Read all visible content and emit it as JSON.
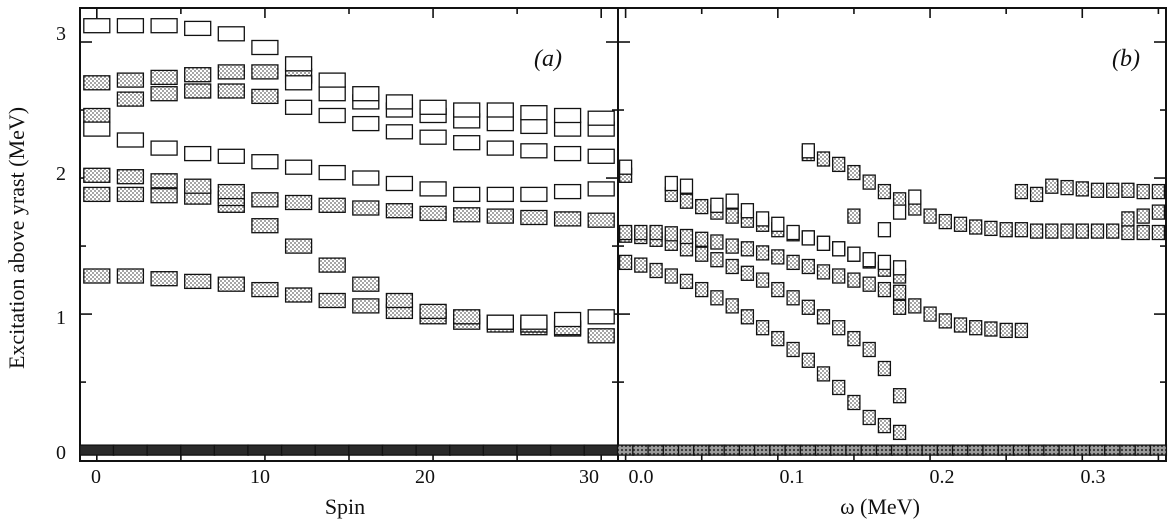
{
  "figure": {
    "ylabel": "Excitation above yrast (MeV)",
    "yticks": [
      "0",
      "1",
      "2",
      "3"
    ],
    "colors": {
      "shaded": "#b9b9b9",
      "open": "#ffffff",
      "ground_a": "#2a2a2a",
      "ground_b": "#9a9a9a",
      "ink": "#111111"
    }
  },
  "chart_data": [
    {
      "type": "scatter",
      "panel_label": "(a)",
      "xlabel": "Spin",
      "ylabel": "Excitation above yrast (MeV)",
      "xlim": [
        -1,
        31
      ],
      "ylim": [
        -0.08,
        3.25
      ],
      "xticks": [
        "0",
        "10",
        "20",
        "30"
      ],
      "series": [
        {
          "style": "shaded",
          "x": [
            0,
            2,
            4,
            6,
            8,
            10,
            12,
            14,
            16,
            18,
            20,
            22,
            24,
            26,
            28,
            30
          ],
          "y": [
            0.0,
            0.0,
            0.0,
            0.0,
            0.0,
            0.0,
            0.0,
            0.0,
            0.0,
            0.0,
            0.0,
            0.0,
            0.0,
            0.0,
            0.0,
            0.0
          ]
        },
        {
          "style": "shaded",
          "x": [
            0,
            2,
            4,
            6,
            8,
            10,
            12,
            14,
            16,
            18,
            20,
            22,
            24,
            26,
            28,
            30
          ],
          "y": [
            1.28,
            1.28,
            1.26,
            1.24,
            1.22,
            1.18,
            1.14,
            1.1,
            1.06,
            1.02,
            0.98,
            0.94,
            0.92,
            0.9,
            0.89,
            0.84
          ]
        },
        {
          "style": "shaded",
          "x": [
            8,
            10,
            12,
            14,
            16,
            18,
            20,
            22,
            24,
            26,
            28
          ],
          "y": [
            1.8,
            1.65,
            1.5,
            1.36,
            1.22,
            1.1,
            1.02,
            0.98,
            0.94,
            0.92,
            0.9
          ]
        },
        {
          "style": "shaded",
          "x": [
            0,
            2,
            4,
            6,
            8,
            10,
            12,
            14,
            16,
            18,
            20,
            22,
            24,
            26,
            28,
            30
          ],
          "y": [
            1.88,
            1.88,
            1.87,
            1.86,
            1.85,
            1.84,
            1.82,
            1.8,
            1.78,
            1.76,
            1.74,
            1.73,
            1.72,
            1.71,
            1.7,
            1.69
          ]
        },
        {
          "style": "shaded",
          "x": [
            0,
            2,
            4,
            6,
            8
          ],
          "y": [
            2.02,
            2.01,
            1.98,
            1.94,
            1.9
          ]
        },
        {
          "style": "shaded",
          "x": [
            0,
            2,
            4,
            6,
            8,
            10
          ],
          "y": [
            2.46,
            2.58,
            2.62,
            2.64,
            2.64,
            2.6
          ]
        },
        {
          "style": "shaded",
          "x": [
            0,
            2,
            4,
            6,
            8,
            10,
            12
          ],
          "y": [
            2.7,
            2.72,
            2.74,
            2.76,
            2.78,
            2.78,
            2.75
          ]
        },
        {
          "style": "open",
          "x": [
            0,
            2,
            4,
            6,
            8,
            10,
            12,
            14,
            16,
            18,
            20,
            22,
            24,
            26,
            28,
            30
          ],
          "y": [
            2.36,
            2.28,
            2.22,
            2.18,
            2.16,
            2.12,
            2.08,
            2.04,
            2.0,
            1.96,
            1.92,
            1.88,
            1.88,
            1.88,
            1.9,
            1.92
          ]
        },
        {
          "style": "open",
          "x": [
            12,
            14,
            16,
            18,
            20,
            22,
            24,
            26,
            28,
            30
          ],
          "y": [
            2.52,
            2.46,
            2.4,
            2.34,
            2.3,
            2.26,
            2.22,
            2.2,
            2.18,
            2.16
          ]
        },
        {
          "style": "open",
          "x": [
            12,
            14,
            16,
            18,
            20,
            22,
            24,
            26,
            28,
            30
          ],
          "y": [
            2.7,
            2.62,
            2.56,
            2.5,
            2.46,
            2.42,
            2.4,
            2.38,
            2.36,
            2.36
          ]
        },
        {
          "style": "open",
          "x": [
            0,
            2,
            4,
            6,
            8,
            10,
            12,
            14,
            16,
            18,
            20,
            22,
            24,
            26,
            28,
            30
          ],
          "y": [
            3.12,
            3.12,
            3.12,
            3.1,
            3.06,
            2.96,
            2.84,
            2.72,
            2.62,
            2.56,
            2.52,
            2.5,
            2.5,
            2.48,
            2.46,
            2.44
          ]
        },
        {
          "style": "open",
          "x": [
            24,
            26,
            28,
            30
          ],
          "y": [
            0.94,
            0.94,
            0.96,
            0.98
          ]
        }
      ]
    },
    {
      "type": "scatter",
      "panel_label": "(b)",
      "xlabel": "ω (MeV)",
      "xlim": [
        -0.005,
        0.355
      ],
      "ylim": [
        -0.08,
        3.25
      ],
      "xticks": [
        "0.0",
        "0.1",
        "0.2",
        "0.3"
      ],
      "series": [
        {
          "style": "ground",
          "x": [
            0.0,
            0.01,
            0.02,
            0.03,
            0.04,
            0.05,
            0.06,
            0.07,
            0.08,
            0.09,
            0.1,
            0.11,
            0.12,
            0.13,
            0.14,
            0.15,
            0.16,
            0.17,
            0.18,
            0.19,
            0.2,
            0.21,
            0.22,
            0.23,
            0.24,
            0.25,
            0.26,
            0.27,
            0.28,
            0.29,
            0.3,
            0.31,
            0.32,
            0.33,
            0.34,
            0.35
          ],
          "y": [
            0.0,
            0.0,
            0.0,
            0.0,
            0.0,
            0.0,
            0.0,
            0.0,
            0.0,
            0.0,
            0.0,
            0.0,
            0.0,
            0.0,
            0.0,
            0.0,
            0.0,
            0.0,
            0.0,
            0.0,
            0.0,
            0.0,
            0.0,
            0.0,
            0.0,
            0.0,
            0.0,
            0.0,
            0.0,
            0.0,
            0.0,
            0.0,
            0.0,
            0.0,
            0.0,
            0.0
          ]
        },
        {
          "style": "shaded",
          "x": [
            0.0,
            0.01,
            0.02,
            0.03,
            0.04,
            0.05,
            0.06,
            0.07,
            0.08,
            0.09,
            0.1,
            0.11,
            0.12,
            0.13,
            0.14,
            0.15,
            0.16,
            0.17,
            0.18
          ],
          "y": [
            1.38,
            1.36,
            1.32,
            1.28,
            1.24,
            1.18,
            1.12,
            1.06,
            0.98,
            0.9,
            0.82,
            0.74,
            0.66,
            0.56,
            0.46,
            0.35,
            0.24,
            0.18,
            0.13
          ]
        },
        {
          "style": "shaded",
          "x": [
            0.0,
            0.01,
            0.02,
            0.03,
            0.04,
            0.05,
            0.06,
            0.07,
            0.08,
            0.09,
            0.1,
            0.11,
            0.12,
            0.13,
            0.14,
            0.15,
            0.16,
            0.17,
            0.18
          ],
          "y": [
            1.58,
            1.57,
            1.55,
            1.52,
            1.48,
            1.44,
            1.4,
            1.35,
            1.3,
            1.25,
            1.18,
            1.12,
            1.05,
            0.98,
            0.9,
            0.82,
            0.74,
            0.6,
            0.4
          ]
        },
        {
          "style": "shaded",
          "x": [
            0.0,
            0.01,
            0.02,
            0.03,
            0.04,
            0.05,
            0.06,
            0.07,
            0.08,
            0.09,
            0.1,
            0.11,
            0.12,
            0.13,
            0.14,
            0.15,
            0.16,
            0.17,
            0.18
          ],
          "y": [
            1.6,
            1.6,
            1.6,
            1.59,
            1.57,
            1.55,
            1.53,
            1.5,
            1.48,
            1.45,
            1.42,
            1.38,
            1.35,
            1.31,
            1.28,
            1.25,
            1.22,
            1.18,
            1.16
          ]
        },
        {
          "style": "shaded",
          "x": [
            0.03,
            0.04,
            0.05,
            0.06,
            0.07,
            0.08,
            0.09,
            0.1,
            0.11,
            0.12,
            0.13,
            0.14,
            0.15,
            0.16,
            0.17,
            0.18
          ],
          "y": [
            1.88,
            1.83,
            1.79,
            1.75,
            1.72,
            1.69,
            1.66,
            1.62,
            1.59,
            1.56,
            1.52,
            1.48,
            1.44,
            1.39,
            1.33,
            1.28
          ]
        },
        {
          "style": "shaded",
          "x": [
            0.0,
            0.12,
            0.13,
            0.14,
            0.15,
            0.16,
            0.17,
            0.18,
            0.19,
            0.2,
            0.21,
            0.22,
            0.23,
            0.24,
            0.25,
            0.26,
            0.27,
            0.28,
            0.29,
            0.3,
            0.31,
            0.32,
            0.33,
            0.34,
            0.35
          ],
          "y": [
            2.02,
            2.18,
            2.14,
            2.1,
            2.04,
            1.97,
            1.9,
            1.84,
            1.78,
            1.72,
            1.68,
            1.66,
            1.64,
            1.63,
            1.62,
            1.62,
            1.61,
            1.61,
            1.61,
            1.61,
            1.61,
            1.61,
            1.6,
            1.6,
            1.6
          ]
        },
        {
          "style": "shaded",
          "x": [
            0.15,
            0.18,
            0.19,
            0.2,
            0.21,
            0.22,
            0.23,
            0.24,
            0.25,
            0.26
          ],
          "y": [
            1.72,
            1.05,
            1.06,
            1.0,
            0.95,
            0.92,
            0.9,
            0.89,
            0.88,
            0.88
          ]
        },
        {
          "style": "shaded",
          "x": [
            0.26,
            0.27,
            0.28,
            0.29,
            0.3,
            0.31,
            0.32,
            0.33,
            0.34,
            0.35
          ],
          "y": [
            1.9,
            1.88,
            1.94,
            1.93,
            1.92,
            1.91,
            1.91,
            1.91,
            1.9,
            1.9
          ]
        },
        {
          "style": "shaded",
          "x": [
            0.33,
            0.34,
            0.35
          ],
          "y": [
            1.7,
            1.72,
            1.75
          ]
        },
        {
          "style": "open",
          "x": [
            0.0,
            0.03,
            0.04,
            0.06,
            0.07,
            0.08,
            0.09,
            0.1,
            0.11,
            0.12,
            0.13,
            0.14,
            0.15,
            0.16,
            0.17,
            0.18
          ],
          "y": [
            2.08,
            1.96,
            1.94,
            1.8,
            1.83,
            1.76,
            1.7,
            1.66,
            1.6,
            1.56,
            1.52,
            1.48,
            1.44,
            1.4,
            1.38,
            1.34
          ]
        },
        {
          "style": "open",
          "x": [
            0.12,
            0.17,
            0.18,
            0.19
          ],
          "y": [
            2.2,
            1.62,
            1.75,
            1.86
          ]
        }
      ]
    }
  ]
}
